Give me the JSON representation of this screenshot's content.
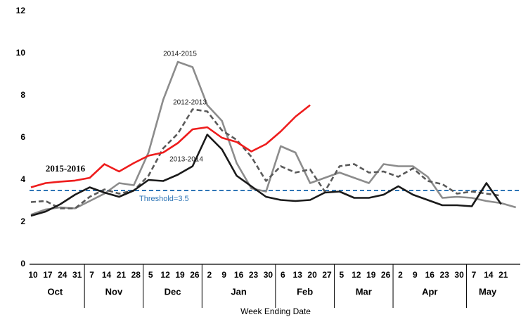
{
  "chart_data": {
    "type": "line",
    "x_label": "Week Ending Date",
    "categories": [
      "10",
      "17",
      "24",
      "31",
      "7",
      "14",
      "21",
      "28",
      "5",
      "12",
      "19",
      "26",
      "2",
      "9",
      "16",
      "23",
      "30",
      "6",
      "13",
      "20",
      "27",
      "5",
      "12",
      "19",
      "26",
      "2",
      "9",
      "16",
      "23",
      "30",
      "7",
      "14",
      "21",
      null
    ],
    "months": [
      "Oct",
      "Nov",
      "Dec",
      "Jan",
      "Feb",
      "Mar",
      "Apr",
      "May"
    ],
    "ylim": [
      0,
      12
    ],
    "yticks": [
      0,
      2,
      4,
      6,
      8,
      10,
      12
    ],
    "threshold": {
      "value": 3.5,
      "label": "Threshold=3.5",
      "color": "#2e75b6"
    },
    "series": [
      {
        "name": "2014-2015",
        "color": "#8c8c8c",
        "dashed": false,
        "values": [
          2.35,
          2.6,
          2.7,
          2.65,
          3.0,
          3.35,
          3.85,
          3.75,
          5.3,
          7.8,
          9.6,
          9.35,
          7.55,
          6.8,
          4.8,
          3.6,
          3.45,
          5.6,
          5.3,
          3.85,
          4.1,
          4.35,
          4.1,
          3.85,
          4.75,
          4.65,
          4.65,
          4.15,
          3.15,
          3.2,
          3.15,
          3.0,
          2.9,
          2.7
        ]
      },
      {
        "name": "2012-2013",
        "color": "#5a5a5a",
        "dashed": true,
        "values": [
          2.95,
          3.0,
          2.65,
          2.65,
          3.2,
          3.55,
          3.35,
          3.5,
          4.2,
          5.5,
          6.2,
          7.35,
          7.25,
          6.35,
          5.9,
          5.1,
          3.95,
          4.65,
          4.35,
          4.5,
          3.45,
          4.65,
          4.75,
          4.35,
          4.4,
          4.15,
          4.55,
          3.95,
          3.8,
          3.35,
          3.45,
          3.35,
          3.25,
          null
        ]
      },
      {
        "name": "2013-2014",
        "color": "#1a1a1a",
        "dashed": false,
        "values": [
          2.3,
          2.5,
          2.85,
          3.3,
          3.65,
          3.4,
          3.2,
          3.5,
          4.0,
          3.95,
          4.25,
          4.65,
          6.15,
          5.45,
          4.2,
          3.7,
          3.2,
          3.05,
          3.0,
          3.05,
          3.4,
          3.45,
          3.15,
          3.15,
          3.3,
          3.7,
          3.3,
          3.05,
          2.8,
          2.8,
          2.75,
          3.85,
          2.85,
          null
        ]
      },
      {
        "name": "2015-2016",
        "color": "#ee1c1c",
        "dashed": false,
        "values": [
          3.65,
          3.85,
          3.92,
          3.97,
          4.1,
          4.75,
          4.4,
          4.8,
          5.15,
          5.3,
          5.75,
          6.4,
          6.5,
          6.0,
          5.8,
          5.35,
          5.7,
          6.3,
          7.0,
          7.55,
          null,
          null,
          null,
          null,
          null,
          null,
          null,
          null,
          null,
          null,
          null,
          null,
          null,
          null
        ]
      }
    ]
  }
}
